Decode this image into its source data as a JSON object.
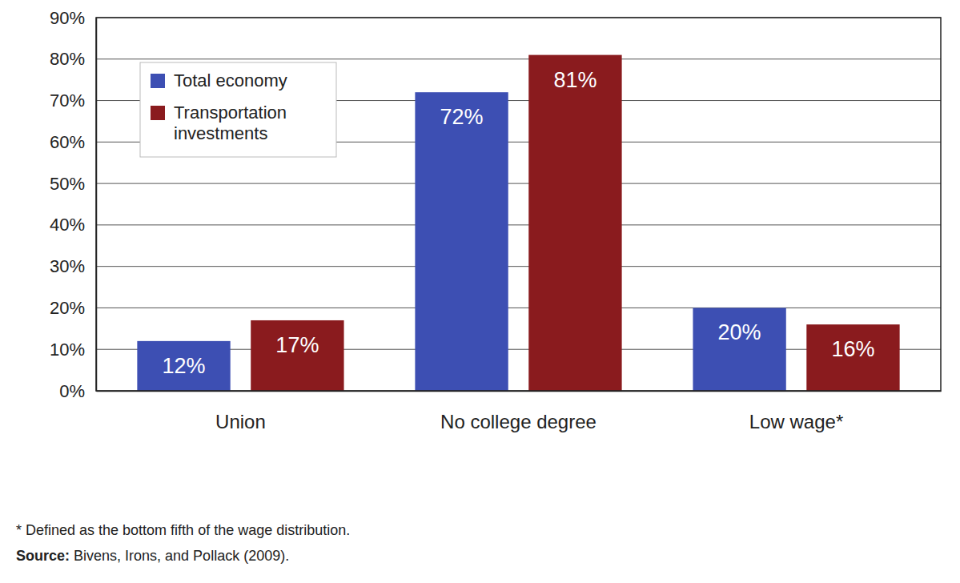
{
  "chart_data": {
    "type": "bar",
    "categories": [
      "Union",
      "No college degree",
      "Low wage*"
    ],
    "series": [
      {
        "name": "Total economy",
        "color": "#3d4fb3",
        "values": [
          12,
          72,
          20
        ],
        "value_labels": [
          "12%",
          "72%",
          "20%"
        ]
      },
      {
        "name": "Transportation investments",
        "color": "#8a1b1e",
        "values": [
          17,
          81,
          16
        ],
        "value_labels": [
          "17%",
          "81%",
          "16%"
        ]
      }
    ],
    "ylim": [
      0,
      90
    ],
    "yticks": [
      {
        "value": 0,
        "label": "0%"
      },
      {
        "value": 10,
        "label": "10%"
      },
      {
        "value": 20,
        "label": "20%"
      },
      {
        "value": 30,
        "label": "30%"
      },
      {
        "value": 40,
        "label": "40%"
      },
      {
        "value": 50,
        "label": "50%"
      },
      {
        "value": 60,
        "label": "60%"
      },
      {
        "value": 70,
        "label": "70%"
      },
      {
        "value": 80,
        "label": "80%"
      },
      {
        "value": 90,
        "label": "90%"
      }
    ],
    "grid": true,
    "legend": "upper left",
    "data_labels": true,
    "annotations": [
      "* Defined as the bottom fifth of the wage distribution.",
      "Source: Bivens, Irons, and Pollack (2009)."
    ]
  }
}
